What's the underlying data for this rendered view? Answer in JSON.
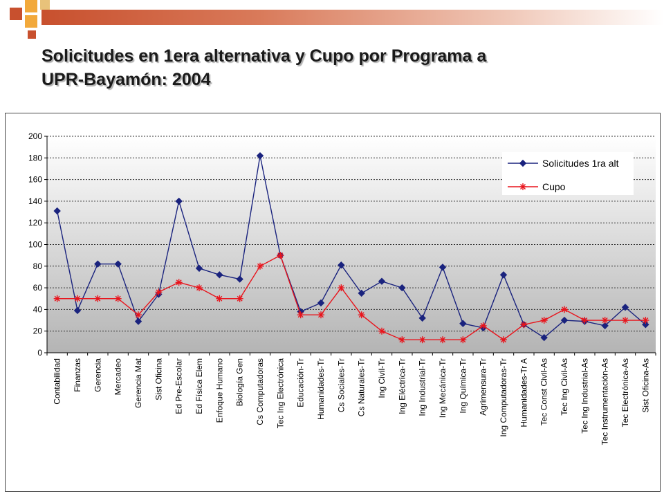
{
  "slide": {
    "title_line1": "Solicitudes en 1era alternativa y Cupo por Programa a",
    "title_line2": "UPR-Bayamón:  2004",
    "accent_colors": [
      "#c8502e",
      "#f2a93b",
      "#e8c27a"
    ]
  },
  "chart_data": {
    "type": "line",
    "title": "",
    "xlabel": "",
    "ylabel": "",
    "ylim": [
      0,
      200
    ],
    "yticks": [
      0,
      20,
      40,
      60,
      80,
      100,
      120,
      140,
      160,
      180,
      200
    ],
    "grid": true,
    "legend_position": "top-right",
    "categories": [
      "Contabilidad",
      "Finanzas",
      "Gerencia",
      "Mercadeo",
      "Gerencia Mat",
      "Sist Oficina",
      "Ed Pre-Escolar",
      "Ed Física Elem",
      "Enfoque Humano",
      "Biología Gen",
      "Cs Computadoras",
      "Tec Ing Electrónica",
      "Educación-Tr",
      "Humanidades-Tr",
      "Cs Sociales-Tr",
      "Cs Naturales-Tr",
      "Ing Civil-Tr",
      "Ing Eléctrica-Tr",
      "Ing Industrial-Tr",
      "Ing Mecánica-Tr",
      "Ing Química-Tr",
      "Agrimensura-Tr",
      "Ing Computadoras-Tr",
      "Humanidades-Tr A",
      "Tec Const Civil-As",
      "Tec Ing Civil-As",
      "Tec Ing Industrial-As",
      "Tec Instrumentación-As",
      "Tec Electrónica-As",
      "Sist Oficina-As"
    ],
    "series": [
      {
        "name": "Solicitudes 1ra alt",
        "color": "#1a237e",
        "marker": "diamond",
        "values": [
          131,
          39,
          82,
          82,
          29,
          54,
          140,
          78,
          72,
          68,
          182,
          90,
          38,
          46,
          81,
          55,
          66,
          60,
          32,
          79,
          27,
          23,
          72,
          26,
          14,
          30,
          29,
          25,
          42,
          26
        ]
      },
      {
        "name": "Cupo",
        "color": "#e8141c",
        "marker": "asterisk",
        "values": [
          50,
          50,
          50,
          50,
          35,
          56,
          65,
          60,
          50,
          50,
          80,
          90,
          35,
          35,
          60,
          35,
          20,
          12,
          12,
          12,
          12,
          25,
          12,
          26,
          30,
          40,
          30,
          30,
          30,
          30
        ]
      }
    ]
  }
}
